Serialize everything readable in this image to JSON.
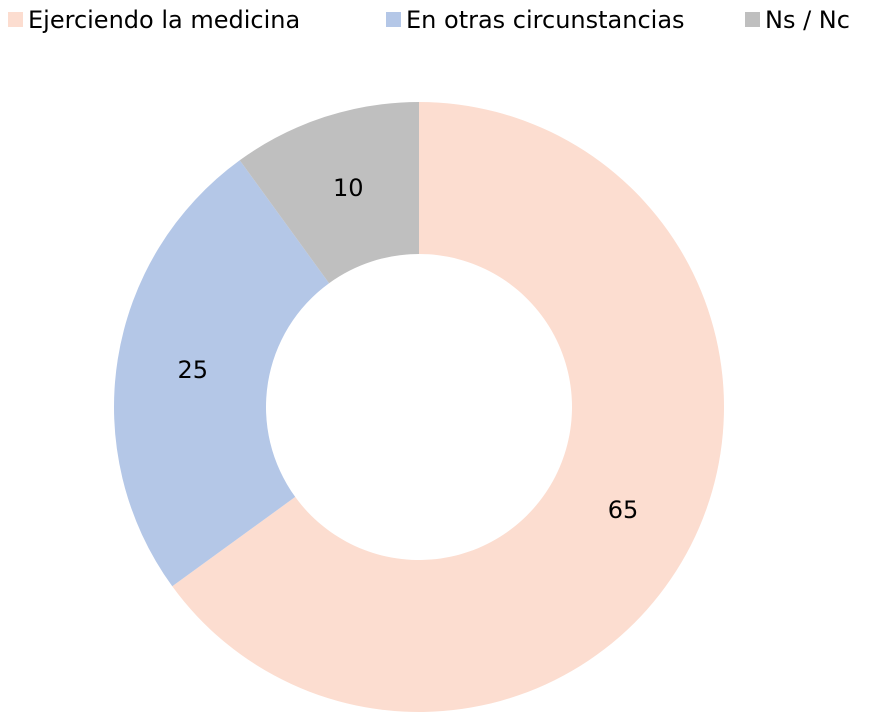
{
  "chart_data": {
    "type": "donut",
    "categories": [
      "Ejerciendo la medicina",
      "En otras circunstancias",
      "Ns / Nc"
    ],
    "values": [
      65,
      25,
      10
    ],
    "colors": [
      "#fcddd0",
      "#b4c7e7",
      "#bfbfbf"
    ],
    "legend": "top"
  }
}
